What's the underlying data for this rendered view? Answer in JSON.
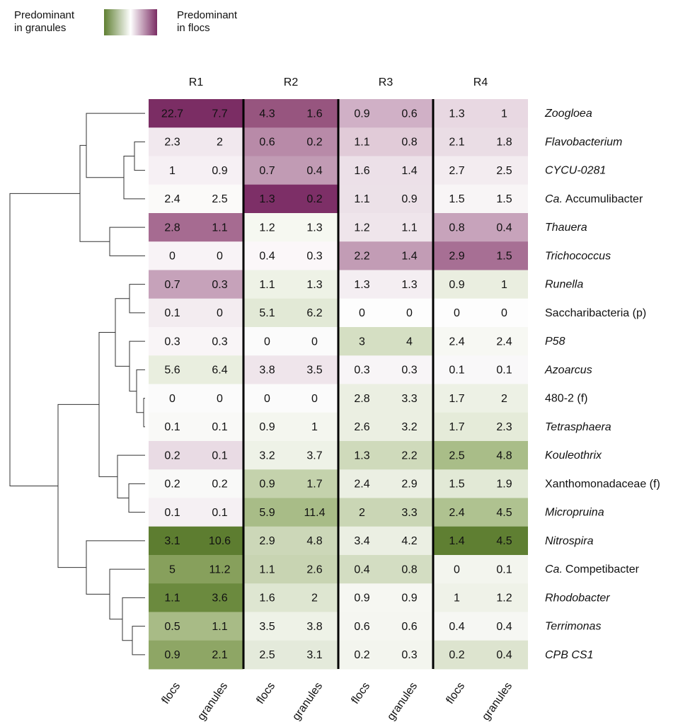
{
  "chart_data": {
    "type": "heatmap",
    "legend": {
      "low_label": [
        "Predominant",
        "in granules"
      ],
      "high_label": [
        "Predominant",
        "in flocs"
      ],
      "colors": [
        "#5f7f32",
        "#ffffff",
        "#7b2d64"
      ]
    },
    "groups": [
      "R1",
      "R2",
      "R3",
      "R4"
    ],
    "x_labels": [
      "flocs",
      "granules",
      "flocs",
      "granules",
      "flocs",
      "granules",
      "flocs",
      "granules"
    ],
    "rows": [
      {
        "name": [
          {
            "text": "Zoogloea",
            "italic": true
          }
        ],
        "values": [
          22.7,
          7.7,
          4.3,
          1.6,
          0.9,
          0.6,
          1.3,
          1
        ],
        "colors": [
          "#7b2d64",
          "#97557f",
          "#d0b0c6",
          "#e8d8e2"
        ]
      },
      {
        "name": [
          {
            "text": "Flavobacterium",
            "italic": true
          }
        ],
        "values": [
          2.3,
          2,
          0.6,
          0.2,
          1.1,
          0.8,
          2.1,
          1.8
        ],
        "colors": [
          "#f1e8ee",
          "#b88aa8",
          "#e1cbd8",
          "#eadde5"
        ]
      },
      {
        "name": [
          {
            "text": "CYCU-0281",
            "italic": true
          }
        ],
        "values": [
          1,
          0.9,
          0.7,
          0.4,
          1.6,
          1.4,
          2.7,
          2.5
        ],
        "colors": [
          "#f6f0f4",
          "#c19bb4",
          "#ece0e8",
          "#f3ecf0"
        ]
      },
      {
        "name": [
          {
            "text": "Ca.",
            "italic": true
          },
          {
            "text": "Accumulibacter",
            "italic": false
          }
        ],
        "values": [
          2.4,
          2.5,
          1.3,
          0.2,
          1.1,
          0.9,
          1.5,
          1.5
        ],
        "colors": [
          "#fbfaf9",
          "#7d2f67",
          "#ece1e8",
          "#f8f5f6"
        ]
      },
      {
        "name": [
          {
            "text": "Thauera",
            "italic": true
          }
        ],
        "values": [
          2.8,
          1.1,
          1.2,
          1.3,
          1.2,
          1.1,
          0.8,
          0.4
        ],
        "colors": [
          "#a66b91",
          "#f6f8f1",
          "#efe5eb",
          "#c7a3bb"
        ]
      },
      {
        "name": [
          {
            "text": "Trichococcus",
            "italic": true
          }
        ],
        "values": [
          0,
          0,
          0.4,
          0.3,
          2.2,
          1.4,
          2.9,
          1.5
        ],
        "colors": [
          "#f8f3f6",
          "#fbf7f9",
          "#c29cb5",
          "#a76f94"
        ]
      },
      {
        "name": [
          {
            "text": "Runella",
            "italic": true
          }
        ],
        "values": [
          0.7,
          0.3,
          1.1,
          1.3,
          1.3,
          1.3,
          0.9,
          1
        ],
        "colors": [
          "#c6a2ba",
          "#eef2e6",
          "#f4eef2",
          "#eaeee0"
        ]
      },
      {
        "name": [
          {
            "text": "Saccharibacteria (p)",
            "italic": false
          }
        ],
        "values": [
          0.1,
          0,
          5.1,
          6.2,
          0,
          0,
          0,
          0
        ],
        "colors": [
          "#f3ecf0",
          "#e2e9d6",
          "#fdfdfd",
          "#fdfdfd"
        ]
      },
      {
        "name": [
          {
            "text": "P58",
            "italic": true
          }
        ],
        "values": [
          0.3,
          0.3,
          0,
          0,
          3,
          4,
          2.4,
          2.4
        ],
        "colors": [
          "#f9f5f7",
          "#fbfbfb",
          "#d5dfc3",
          "#f7f8f3"
        ]
      },
      {
        "name": [
          {
            "text": "Azoarcus",
            "italic": true
          }
        ],
        "values": [
          5.6,
          6.4,
          3.8,
          3.5,
          0.3,
          0.3,
          0.1,
          0.1
        ],
        "colors": [
          "#e9eedf",
          "#efe5eb",
          "#f8f5f7",
          "#f9f8f9"
        ]
      },
      {
        "name": [
          {
            "text": "480-2 (f)",
            "italic": false
          }
        ],
        "values": [
          0,
          0,
          0,
          0,
          2.8,
          3.3,
          1.7,
          2
        ],
        "colors": [
          "#fbfbfb",
          "#fbfbfb",
          "#ebefe2",
          "#edf1e5"
        ]
      },
      {
        "name": [
          {
            "text": "Tetrasphaera",
            "italic": true
          }
        ],
        "values": [
          0.1,
          0.1,
          0.9,
          1,
          2.6,
          3.2,
          1.7,
          2.3
        ],
        "colors": [
          "#f9f9f7",
          "#f4f6ef",
          "#ebefe2",
          "#e5ebd9"
        ]
      },
      {
        "name": [
          {
            "text": "Kouleothrix",
            "italic": true
          }
        ],
        "values": [
          0.2,
          0.1,
          3.2,
          3.7,
          1.3,
          2.2,
          2.5,
          4.8
        ],
        "colors": [
          "#e9dbe4",
          "#eef2e7",
          "#cfdabb",
          "#a9bd88"
        ]
      },
      {
        "name": [
          {
            "text": "Xanthomonadaceae (f)",
            "italic": false
          }
        ],
        "values": [
          0.2,
          0.2,
          0.9,
          1.7,
          2.4,
          2.9,
          1.5,
          1.9
        ],
        "colors": [
          "#f9f9f8",
          "#c4d2ac",
          "#ebefe3",
          "#e2e9d6"
        ]
      },
      {
        "name": [
          {
            "text": "Micropruina",
            "italic": true
          }
        ],
        "values": [
          0.1,
          0.1,
          5.9,
          11.4,
          2,
          3.3,
          2.4,
          4.5
        ],
        "colors": [
          "#f5f0f3",
          "#a8bc87",
          "#cad6b5",
          "#afc290"
        ]
      },
      {
        "name": [
          {
            "text": "Nitrospira",
            "italic": true
          }
        ],
        "values": [
          3.1,
          10.6,
          2.9,
          4.8,
          3.4,
          4.2,
          1.4,
          4.5
        ],
        "colors": [
          "#5d7d30",
          "#ccd7b8",
          "#ebefe3",
          "#5f7f32"
        ]
      },
      {
        "name": [
          {
            "text": "Ca.",
            "italic": true
          },
          {
            "text": "Competibacter",
            "italic": false
          }
        ],
        "values": [
          5,
          11.2,
          1.1,
          2.6,
          0.4,
          0.8,
          0,
          0.1
        ],
        "colors": [
          "#87a05c",
          "#c8d4b2",
          "#d3ddc2",
          "#f3f5ee"
        ]
      },
      {
        "name": [
          {
            "text": "Rhodobacter",
            "italic": true
          }
        ],
        "values": [
          1.1,
          3.6,
          1.6,
          2,
          0.9,
          0.9,
          1,
          1.2
        ],
        "colors": [
          "#6b8a3e",
          "#dee6d1",
          "#f6f7f2",
          "#eff2e8"
        ]
      },
      {
        "name": [
          {
            "text": "Terrimonas",
            "italic": true
          }
        ],
        "values": [
          0.5,
          1.1,
          3.5,
          3.8,
          0.6,
          0.6,
          0.4,
          0.4
        ],
        "colors": [
          "#a8bb86",
          "#eef2e7",
          "#f5f6f1",
          "#f6f7f3"
        ]
      },
      {
        "name": [
          {
            "text": "CPB CS1",
            "italic": true
          }
        ],
        "values": [
          0.9,
          2.1,
          2.5,
          3.1,
          0.2,
          0.3,
          0.2,
          0.4
        ],
        "colors": [
          "#8ea665",
          "#e4eadb",
          "#f3f5ee",
          "#dde4cf"
        ]
      }
    ]
  }
}
